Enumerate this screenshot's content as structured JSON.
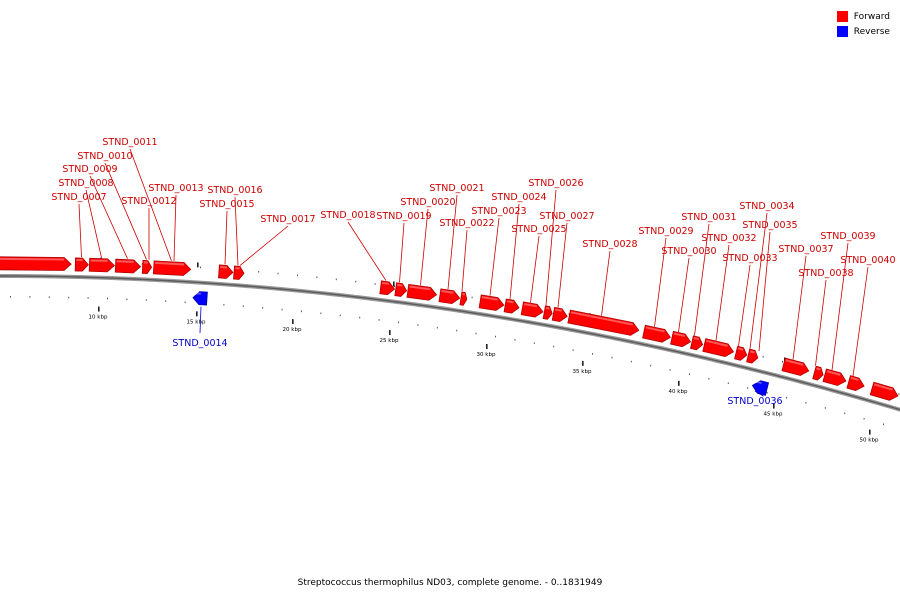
{
  "caption": "Streptococcus thermophilus ND03, complete genome. - 0..1831949",
  "legend": [
    {
      "label": "Forward",
      "color": "#ff0000"
    },
    {
      "label": "Reverse",
      "color": "#0000ff"
    }
  ],
  "colors": {
    "forward": "#ff0000",
    "reverse": "#0000ff",
    "label_forward": "#cc0000",
    "label_reverse": "#0000cc",
    "backbone": "#777777"
  },
  "scale_labels": [
    "10 kbp",
    "15 kbp",
    "20 kbp",
    "25 kbp",
    "30 kbp",
    "35 kbp",
    "40 kbp",
    "45 kbp",
    "50 kbp"
  ],
  "genes": [
    {
      "name": "",
      "strand": "forward"
    },
    {
      "name": "STND_0007",
      "strand": "forward"
    },
    {
      "name": "STND_0008",
      "strand": "forward"
    },
    {
      "name": "STND_0009",
      "strand": "forward"
    },
    {
      "name": "STND_0010",
      "strand": "forward"
    },
    {
      "name": "STND_0011",
      "strand": "forward"
    },
    {
      "name": "STND_0012",
      "strand": "forward"
    },
    {
      "name": "STND_0013",
      "strand": "forward"
    },
    {
      "name": "STND_0014",
      "strand": "reverse"
    },
    {
      "name": "STND_0015",
      "strand": "forward"
    },
    {
      "name": "STND_0016",
      "strand": "forward"
    },
    {
      "name": "STND_0017",
      "strand": "forward"
    },
    {
      "name": "STND_0018",
      "strand": "forward"
    },
    {
      "name": "STND_0019",
      "strand": "forward"
    },
    {
      "name": "STND_0020",
      "strand": "forward"
    },
    {
      "name": "STND_0021",
      "strand": "forward"
    },
    {
      "name": "STND_0022",
      "strand": "forward"
    },
    {
      "name": "STND_0023",
      "strand": "forward"
    },
    {
      "name": "STND_0024",
      "strand": "forward"
    },
    {
      "name": "STND_0025",
      "strand": "forward"
    },
    {
      "name": "STND_0026",
      "strand": "forward"
    },
    {
      "name": "STND_0027",
      "strand": "forward"
    },
    {
      "name": "STND_0028",
      "strand": "forward"
    },
    {
      "name": "STND_0029",
      "strand": "forward"
    },
    {
      "name": "STND_0030",
      "strand": "forward"
    },
    {
      "name": "STND_0031",
      "strand": "forward"
    },
    {
      "name": "STND_0032",
      "strand": "forward"
    },
    {
      "name": "STND_0033",
      "strand": "forward"
    },
    {
      "name": "STND_0034",
      "strand": "forward"
    },
    {
      "name": "STND_0035",
      "strand": "forward"
    },
    {
      "name": "STND_0036",
      "strand": "reverse"
    },
    {
      "name": "STND_0037",
      "strand": "forward"
    },
    {
      "name": "STND_0038",
      "strand": "forward"
    },
    {
      "name": "STND_0039",
      "strand": "forward"
    },
    {
      "name": "STND_0040",
      "strand": "forward"
    },
    {
      "name": "",
      "strand": "forward"
    }
  ]
}
